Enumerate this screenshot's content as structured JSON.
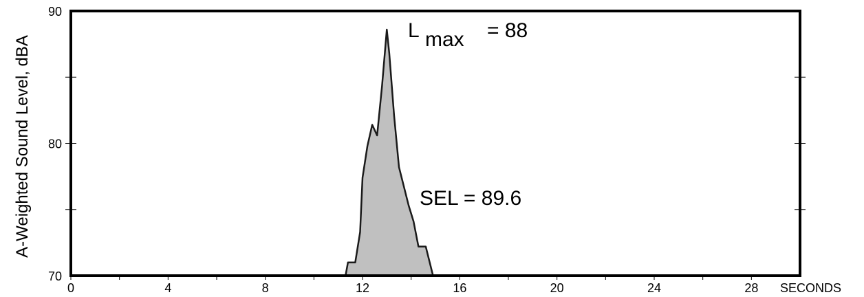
{
  "chart_data": {
    "type": "area",
    "xlabel": "SECONDS",
    "ylabel": "A-Weighted Sound Level, dBA",
    "xlim": [
      0,
      30
    ],
    "ylim": [
      70,
      90
    ],
    "x_ticks": [
      0,
      4,
      8,
      12,
      16,
      20,
      24,
      28
    ],
    "y_ticks": [
      70,
      80,
      90
    ],
    "x": [
      11.3,
      11.4,
      11.7,
      11.9,
      12.0,
      12.2,
      12.4,
      12.6,
      12.8,
      13.0,
      13.1,
      13.3,
      13.5,
      13.9,
      14.1,
      14.3,
      14.6,
      14.9
    ],
    "values": [
      70.0,
      71.0,
      71.0,
      73.3,
      77.4,
      79.8,
      81.4,
      80.6,
      84.3,
      88.6,
      86.8,
      82.1,
      78.2,
      75.3,
      74.1,
      72.2,
      72.2,
      70.0
    ],
    "annotations": {
      "lmax_symbol": "L",
      "lmax_subscript": "max",
      "lmax_value": "= 88",
      "sel": "SEL = 89.6"
    },
    "colors": {
      "fill": "#c0c0c0",
      "stroke": "#1a1a1a",
      "frame": "#000000"
    },
    "grid": false
  }
}
